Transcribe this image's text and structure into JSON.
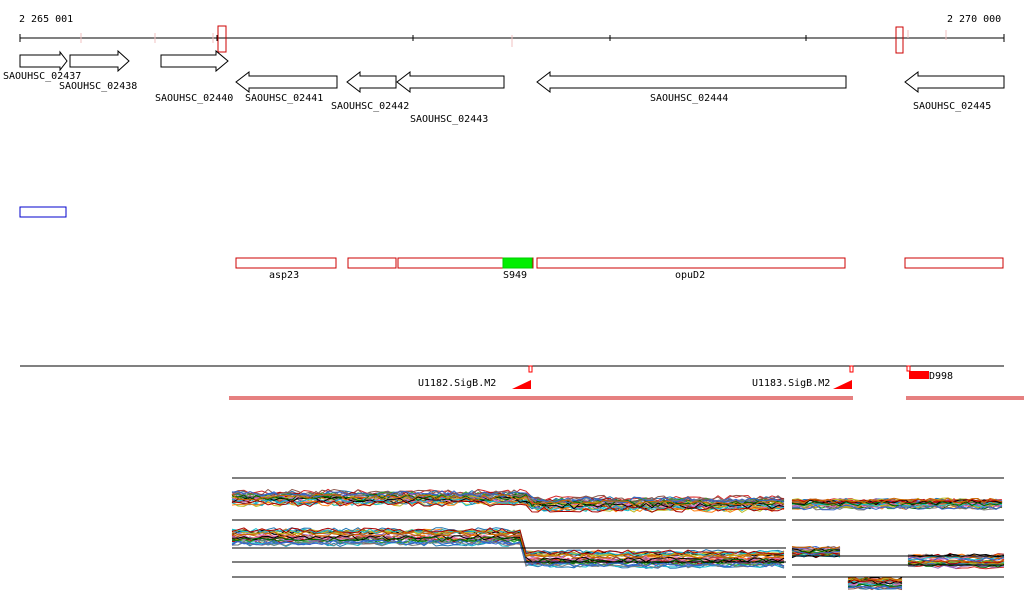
{
  "scale": {
    "start_label": "2 265 001",
    "end_label": "2 270 000"
  },
  "genes": [
    {
      "label": "SAOUHSC_02437",
      "strand": "+"
    },
    {
      "label": "SAOUHSC_02438",
      "strand": "+"
    },
    {
      "label": "SAOUHSC_02440",
      "strand": "+"
    },
    {
      "label": "SAOUHSC_02441",
      "strand": "-"
    },
    {
      "label": "SAOUHSC_02442",
      "strand": "-"
    },
    {
      "label": "SAOUHSC_02443",
      "strand": "-"
    },
    {
      "label": "SAOUHSC_02444",
      "strand": "-"
    },
    {
      "label": "SAOUHSC_02445",
      "strand": "-"
    }
  ],
  "transcripts": [
    {
      "label": "asp23"
    },
    {
      "label": ""
    },
    {
      "label": ""
    },
    {
      "label": "S949",
      "highlight": true
    },
    {
      "label": "opuD2"
    },
    {
      "label": ""
    }
  ],
  "promoters": [
    {
      "label": "U1182.SigB.M2"
    },
    {
      "label": "U1183.SigB.M2"
    },
    {
      "label": "D998"
    }
  ],
  "colors": {
    "gene_outline": "#000000",
    "transcript_outline": "#cc0000",
    "transcript_highlight": "#00ee00",
    "promoter": "#ff0000",
    "dark_red_line": "#cc0000",
    "blue_box": "#0000cc"
  }
}
